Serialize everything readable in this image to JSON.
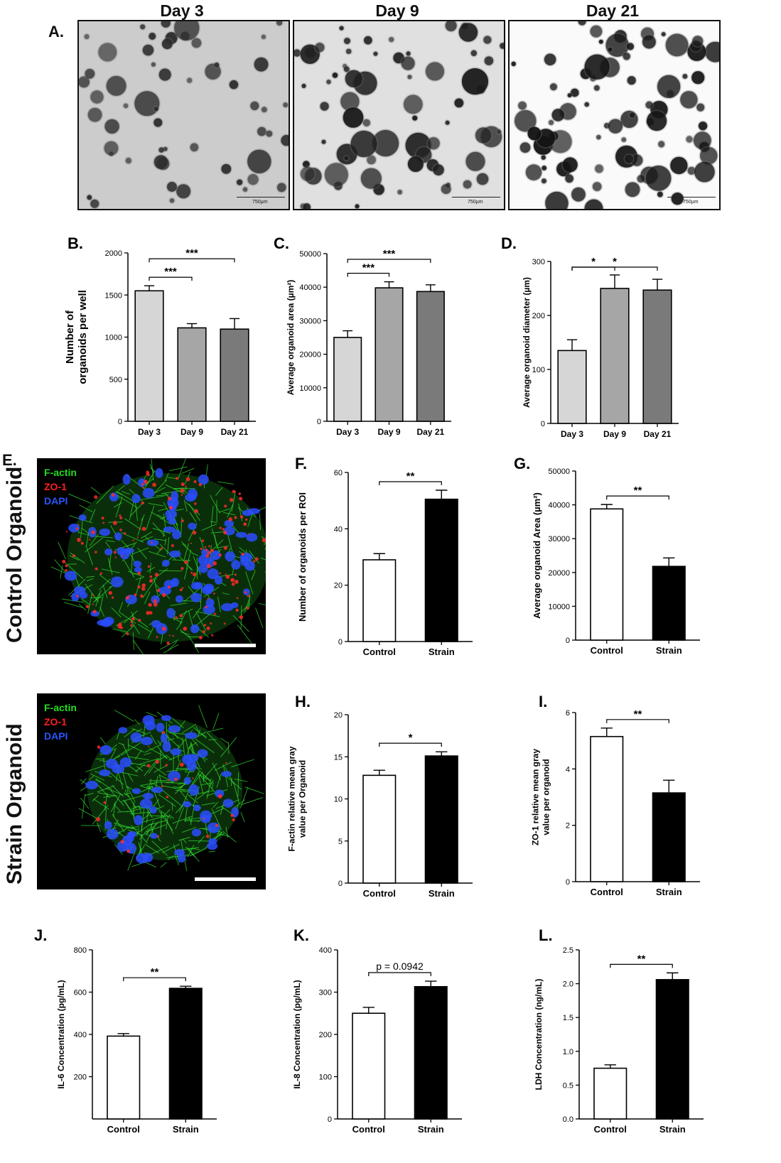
{
  "panel_a": {
    "letter": "A.",
    "days": [
      "Day 3",
      "Day 9",
      "Day 21"
    ],
    "scale_bar_label": "750µm"
  },
  "panel_e": {
    "letter": "E.",
    "rows": [
      "Control Organoid",
      "Strain Organoid"
    ],
    "legend": [
      {
        "label": "F-actin",
        "color": "#22dd22"
      },
      {
        "label": "ZO-1",
        "color": "#ff2020"
      },
      {
        "label": "DAPI",
        "color": "#2a55ff"
      }
    ]
  },
  "chart_data": [
    {
      "id": "B",
      "letter": "B.",
      "type": "bar",
      "categories": [
        "Day 3",
        "Day 9",
        "Day 21"
      ],
      "values": [
        1550,
        1110,
        1095
      ],
      "errors": [
        60,
        50,
        125
      ],
      "colors": [
        "#d6d6d6",
        "#a6a6a6",
        "#7a7a7a"
      ],
      "ylabel": "Number of organoids per well",
      "ylabel_lines": [
        "Number of",
        "organoids per well"
      ],
      "ylim": [
        0,
        2000
      ],
      "yticks": [
        0,
        500,
        1000,
        1500,
        2000
      ],
      "sig": [
        {
          "from": 0,
          "to": 1,
          "label": "***"
        },
        {
          "from": 0,
          "to": 2,
          "label": "***"
        }
      ]
    },
    {
      "id": "C",
      "letter": "C.",
      "type": "bar",
      "categories": [
        "Day 3",
        "Day 9",
        "Day 21"
      ],
      "values": [
        25000,
        39800,
        38700
      ],
      "errors": [
        2000,
        1800,
        2000
      ],
      "colors": [
        "#d6d6d6",
        "#a6a6a6",
        "#7a7a7a"
      ],
      "ylabel": "Average organoid area (µm²)",
      "ylabel_lines": [
        "Average organoid area (µm²)"
      ],
      "ylim": [
        0,
        50000
      ],
      "yticks": [
        0,
        10000,
        20000,
        30000,
        40000,
        50000
      ],
      "sig": [
        {
          "from": 0,
          "to": 1,
          "label": "***"
        },
        {
          "from": 0,
          "to": 2,
          "label": "***"
        }
      ]
    },
    {
      "id": "D",
      "letter": "D.",
      "type": "bar",
      "categories": [
        "Day 3",
        "Day 9",
        "Day 21"
      ],
      "values": [
        135,
        250,
        247
      ],
      "errors": [
        20,
        25,
        20
      ],
      "colors": [
        "#d6d6d6",
        "#a6a6a6",
        "#7a7a7a"
      ],
      "ylabel": "Average organoid diameter (µm)",
      "ylabel_lines": [
        "Average organoid diameter (µm)"
      ],
      "ylim": [
        0,
        300
      ],
      "yticks": [
        0,
        100,
        200,
        300
      ],
      "sig": [
        {
          "from": 0,
          "to": 1,
          "label": "*"
        },
        {
          "from": 0,
          "to": 2,
          "label": "*"
        }
      ]
    },
    {
      "id": "F",
      "letter": "F.",
      "type": "bar",
      "categories": [
        "Control",
        "Strain"
      ],
      "values": [
        29,
        50.5
      ],
      "errors": [
        2.2,
        3.2
      ],
      "colors": [
        "#ffffff",
        "#000000"
      ],
      "ylabel": "Number of organoids per ROI",
      "ylabel_lines": [
        "Number of organoids per ROI"
      ],
      "ylim": [
        0,
        60
      ],
      "yticks": [
        0,
        20,
        40,
        60
      ],
      "sig": [
        {
          "from": 0,
          "to": 1,
          "label": "**"
        }
      ]
    },
    {
      "id": "G",
      "letter": "G.",
      "type": "bar",
      "categories": [
        "Control",
        "Strain"
      ],
      "values": [
        38800,
        21800
      ],
      "errors": [
        1300,
        2500
      ],
      "colors": [
        "#ffffff",
        "#000000"
      ],
      "ylabel": "Average organoid Area (µm²)",
      "ylabel_lines": [
        "Average organoid Area (µm²)"
      ],
      "ylim": [
        0,
        50000
      ],
      "yticks": [
        0,
        10000,
        20000,
        30000,
        40000,
        50000
      ],
      "sig": [
        {
          "from": 0,
          "to": 1,
          "label": "**"
        }
      ]
    },
    {
      "id": "H",
      "letter": "H.",
      "type": "bar",
      "categories": [
        "Control",
        "Strain"
      ],
      "values": [
        12.8,
        15.1
      ],
      "errors": [
        0.6,
        0.5
      ],
      "colors": [
        "#ffffff",
        "#000000"
      ],
      "ylabel": "F-actin relative mean gray value per Organoid",
      "ylabel_lines": [
        "F-actin relative mean gray",
        "value per Organoid"
      ],
      "ylim": [
        0,
        20
      ],
      "yticks": [
        0,
        5,
        10,
        15,
        20
      ],
      "sig": [
        {
          "from": 0,
          "to": 1,
          "label": "*"
        }
      ]
    },
    {
      "id": "I",
      "letter": "I.",
      "type": "bar",
      "categories": [
        "Control",
        "Strain"
      ],
      "values": [
        5.15,
        3.15
      ],
      "errors": [
        0.3,
        0.45
      ],
      "colors": [
        "#ffffff",
        "#000000"
      ],
      "ylabel": "ZO-1 relative mean gray value per organoid",
      "ylabel_lines": [
        "ZO-1 relative mean gray",
        "value per organoid"
      ],
      "ylim": [
        0,
        6
      ],
      "yticks": [
        0,
        2,
        4,
        6
      ],
      "sig": [
        {
          "from": 0,
          "to": 1,
          "label": "**"
        }
      ]
    },
    {
      "id": "J",
      "letter": "J.",
      "type": "bar",
      "categories": [
        "Control",
        "Strain"
      ],
      "values": [
        392,
        618
      ],
      "errors": [
        12,
        10
      ],
      "colors": [
        "#ffffff",
        "#000000"
      ],
      "ylabel": "IL-6 Concentration (pg/mL)",
      "ylabel_lines": [
        "IL-6 Concentration (pg/mL)"
      ],
      "ylim": [
        0,
        800
      ],
      "yticks": [
        200,
        400,
        600,
        800
      ],
      "sig": [
        {
          "from": 0,
          "to": 1,
          "label": "**"
        }
      ]
    },
    {
      "id": "K",
      "letter": "K.",
      "type": "bar",
      "categories": [
        "Control",
        "Strain"
      ],
      "values": [
        250,
        313
      ],
      "errors": [
        14,
        13
      ],
      "colors": [
        "#ffffff",
        "#000000"
      ],
      "ylabel": "IL-8 Concentration (pg/mL)",
      "ylabel_lines": [
        "IL-8 Concentration (pg/mL)"
      ],
      "ylim": [
        0,
        400
      ],
      "yticks": [
        0,
        100,
        200,
        300,
        400
      ],
      "sig": [
        {
          "from": 0,
          "to": 1,
          "label": "p = 0.0942"
        }
      ]
    },
    {
      "id": "L",
      "letter": "L.",
      "type": "bar",
      "categories": [
        "Control",
        "Strain"
      ],
      "values": [
        0.75,
        2.06
      ],
      "errors": [
        0.05,
        0.1
      ],
      "colors": [
        "#ffffff",
        "#000000"
      ],
      "ylabel": "LDH Concentration (ng/mL)",
      "ylabel_lines": [
        "LDH Concentration (ng/mL)"
      ],
      "ylim": [
        0,
        2.5
      ],
      "yticks": [
        0.0,
        0.5,
        1.0,
        1.5,
        2.0,
        2.5
      ],
      "tick_decimals": 1,
      "sig": [
        {
          "from": 0,
          "to": 1,
          "label": "**"
        }
      ]
    }
  ]
}
